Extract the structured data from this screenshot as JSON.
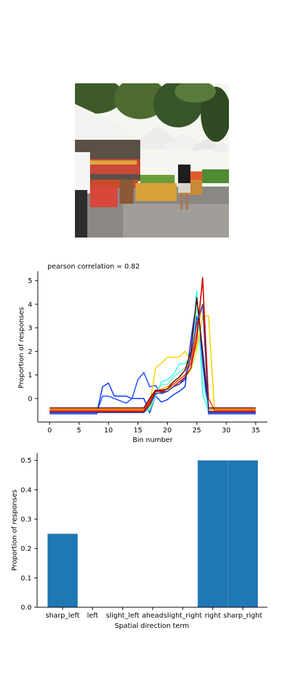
{
  "photo": {
    "description_label": "market-photo"
  },
  "chart_data": [
    {
      "type": "line",
      "title": "pearson correlation = 0.82",
      "xlabel": "Bin number",
      "ylabel": "Proportion of responses",
      "xlim": [
        -2,
        37
      ],
      "ylim": [
        -1,
        5.4
      ],
      "xticks": [
        0,
        5,
        10,
        15,
        20,
        25,
        30,
        35
      ],
      "yticks": [
        0,
        1,
        2,
        3,
        4,
        5
      ],
      "grid": false,
      "legend": "none",
      "x": [
        0,
        1,
        2,
        3,
        4,
        5,
        6,
        7,
        8,
        9,
        10,
        11,
        12,
        13,
        14,
        15,
        16,
        17,
        18,
        19,
        20,
        21,
        22,
        23,
        24,
        25,
        26,
        27,
        28,
        29,
        30,
        31,
        32,
        33,
        34,
        35
      ],
      "series": [
        {
          "color": "#0033ff",
          "values": [
            -0.65,
            -0.65,
            -0.65,
            -0.65,
            -0.65,
            -0.65,
            -0.65,
            -0.65,
            -0.65,
            0.5,
            0.65,
            0.1,
            0.1,
            0.1,
            0.0,
            0.0,
            0.0,
            -0.6,
            0.1,
            -0.15,
            -0.05,
            0.15,
            0.3,
            0.5,
            2.5,
            4.2,
            1.5,
            -0.65,
            -0.65,
            -0.65,
            -0.65,
            -0.65,
            -0.65,
            -0.65,
            -0.65,
            -0.65
          ]
        },
        {
          "color": "#1a4dff",
          "values": [
            -0.6,
            -0.6,
            -0.6,
            -0.6,
            -0.6,
            -0.6,
            -0.6,
            -0.6,
            -0.6,
            0.1,
            0.1,
            0.0,
            -0.1,
            -0.2,
            0.0,
            0.8,
            1.1,
            0.5,
            0.55,
            0.2,
            0.3,
            0.5,
            0.6,
            0.9,
            1.9,
            3.5,
            2.0,
            -0.6,
            -0.6,
            -0.6,
            -0.6,
            -0.6,
            -0.6,
            -0.6,
            -0.6,
            -0.6
          ]
        },
        {
          "color": "#33ffee",
          "values": [
            -0.55,
            -0.55,
            -0.55,
            -0.55,
            -0.55,
            -0.55,
            -0.55,
            -0.55,
            -0.55,
            -0.55,
            -0.55,
            -0.55,
            -0.55,
            -0.55,
            -0.55,
            -0.55,
            -0.55,
            -0.5,
            0.1,
            0.7,
            0.8,
            1.0,
            1.45,
            1.5,
            1.7,
            4.6,
            0.2,
            -0.55,
            -0.55,
            -0.55,
            -0.55,
            -0.55,
            -0.55,
            -0.55,
            -0.55,
            -0.55
          ]
        },
        {
          "color": "#66ffcc",
          "values": [
            -0.5,
            -0.5,
            -0.5,
            -0.5,
            -0.5,
            -0.5,
            -0.5,
            -0.5,
            -0.5,
            -0.5,
            -0.5,
            -0.5,
            -0.5,
            -0.5,
            -0.5,
            -0.5,
            -0.5,
            -0.45,
            0.2,
            0.6,
            0.6,
            0.9,
            1.1,
            1.3,
            1.5,
            4.0,
            0.8,
            -0.5,
            -0.5,
            -0.5,
            -0.5,
            -0.5,
            -0.5,
            -0.5,
            -0.5,
            -0.5
          ]
        },
        {
          "color": "#ccff33",
          "values": [
            -0.5,
            -0.5,
            -0.5,
            -0.5,
            -0.5,
            -0.5,
            -0.5,
            -0.5,
            -0.5,
            -0.5,
            -0.5,
            -0.5,
            -0.5,
            -0.5,
            -0.5,
            -0.5,
            -0.5,
            -0.4,
            0.3,
            0.3,
            0.4,
            0.5,
            0.7,
            0.9,
            1.2,
            2.0,
            3.5,
            3.5,
            -0.5,
            -0.5,
            -0.5,
            -0.5,
            -0.5,
            -0.5,
            -0.5,
            -0.5
          ]
        },
        {
          "color": "#ffcc00",
          "values": [
            -0.45,
            -0.45,
            -0.45,
            -0.45,
            -0.45,
            -0.45,
            -0.45,
            -0.45,
            -0.45,
            -0.45,
            -0.45,
            -0.45,
            -0.45,
            -0.45,
            -0.45,
            -0.45,
            -0.45,
            -0.3,
            1.3,
            1.5,
            1.75,
            1.75,
            1.75,
            2.0,
            1.6,
            2.2,
            3.5,
            3.5,
            -0.45,
            -0.45,
            -0.45,
            -0.45,
            -0.45,
            -0.45,
            -0.45,
            -0.45
          ]
        },
        {
          "color": "#ff9900",
          "values": [
            -0.45,
            -0.45,
            -0.45,
            -0.45,
            -0.45,
            -0.45,
            -0.45,
            -0.45,
            -0.45,
            -0.45,
            -0.45,
            -0.45,
            -0.45,
            -0.45,
            -0.45,
            -0.45,
            -0.45,
            0.0,
            0.3,
            0.4,
            0.5,
            0.7,
            0.9,
            1.2,
            1.7,
            2.8,
            4.0,
            -0.45,
            -0.45,
            -0.45,
            -0.45,
            -0.45,
            -0.45,
            -0.45,
            -0.45,
            -0.45
          ]
        },
        {
          "color": "#ff3300",
          "values": [
            -0.5,
            -0.5,
            -0.5,
            -0.5,
            -0.5,
            -0.5,
            -0.5,
            -0.5,
            -0.5,
            -0.5,
            -0.5,
            -0.5,
            -0.5,
            -0.5,
            -0.5,
            -0.5,
            -0.5,
            -0.1,
            0.3,
            0.3,
            0.4,
            0.6,
            0.8,
            1.0,
            1.5,
            2.8,
            5.0,
            0.0,
            -0.5,
            -0.5,
            -0.5,
            -0.5,
            -0.5,
            -0.5,
            -0.5,
            -0.5
          ]
        },
        {
          "color": "#cc0000",
          "values": [
            -0.55,
            -0.55,
            -0.55,
            -0.55,
            -0.55,
            -0.55,
            -0.55,
            -0.55,
            -0.55,
            -0.55,
            -0.55,
            -0.55,
            -0.55,
            -0.55,
            -0.55,
            -0.55,
            -0.55,
            -0.2,
            0.3,
            0.3,
            0.3,
            0.5,
            0.7,
            0.9,
            1.3,
            2.5,
            5.15,
            -0.55,
            -0.55,
            -0.55,
            -0.55,
            -0.55,
            -0.55,
            -0.55,
            -0.55,
            -0.55
          ]
        },
        {
          "color": "#660000",
          "values": [
            -0.4,
            -0.4,
            -0.4,
            -0.4,
            -0.4,
            -0.4,
            -0.4,
            -0.4,
            -0.4,
            -0.4,
            -0.4,
            -0.4,
            -0.4,
            -0.4,
            -0.4,
            -0.4,
            -0.4,
            0.0,
            0.35,
            0.35,
            0.4,
            0.7,
            0.9,
            1.2,
            2.0,
            4.3,
            2.0,
            -0.4,
            -0.4,
            -0.4,
            -0.4,
            -0.4,
            -0.4,
            -0.4,
            -0.4,
            -0.4
          ]
        },
        {
          "color": "#3b3b9b",
          "values": [
            -0.6,
            -0.6,
            -0.6,
            -0.6,
            -0.6,
            -0.6,
            -0.6,
            -0.6,
            -0.6,
            -0.6,
            -0.6,
            -0.6,
            -0.6,
            -0.6,
            -0.6,
            -0.6,
            -0.6,
            -0.3,
            0.2,
            0.25,
            0.3,
            0.5,
            0.6,
            0.8,
            1.8,
            3.2,
            4.0,
            -0.6,
            -0.6,
            -0.6,
            -0.6,
            -0.6,
            -0.6,
            -0.6,
            -0.6,
            -0.6
          ]
        }
      ]
    },
    {
      "type": "bar",
      "title": "",
      "xlabel": "Spatial direction term",
      "ylabel": "Proportion of responses",
      "ylim": [
        0,
        0.525
      ],
      "yticks": [
        0.0,
        0.1,
        0.2,
        0.3,
        0.4,
        0.5
      ],
      "ytick_labels": [
        "0.0",
        "0.1",
        "0.2",
        "0.3",
        "0.4",
        "0.5"
      ],
      "categories": [
        "sharp_left",
        "left",
        "slight_left",
        "ahead",
        "slight_right",
        "right",
        "sharp_right"
      ],
      "values": [
        0.25,
        0.0,
        0.0,
        0.0,
        0.0,
        0.5,
        0.5
      ],
      "bar_color": "#1f77b4",
      "grid": false
    }
  ]
}
